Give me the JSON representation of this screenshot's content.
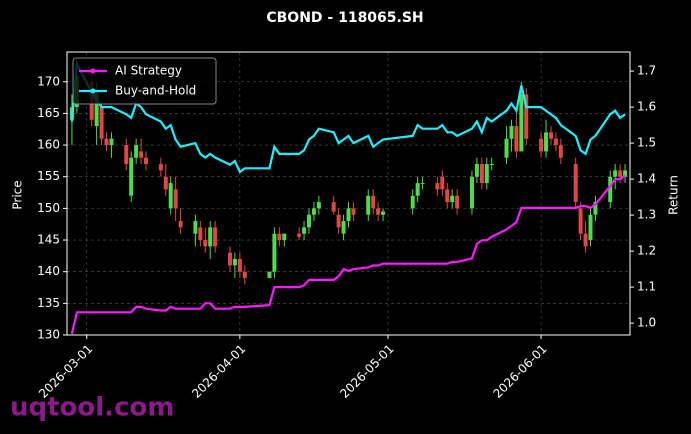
{
  "chart_data": {
    "type": "candlestick",
    "title": "CBOND - 118065.SH",
    "ylabel": "Price",
    "y2label": "Return",
    "watermark": "uqtool.com",
    "up_color": "#4ddc4d",
    "down_color": "#e04848",
    "grid": true,
    "legend": "upper left",
    "x": [
      "2026-02-26",
      "2026-02-27",
      "2026-03-02",
      "2026-03-03",
      "2026-03-04",
      "2026-03-05",
      "2026-03-06",
      "2026-03-09",
      "2026-03-10",
      "2026-03-11",
      "2026-03-12",
      "2026-03-13",
      "2026-03-16",
      "2026-03-17",
      "2026-03-18",
      "2026-03-19",
      "2026-03-20",
      "2026-03-23",
      "2026-03-24",
      "2026-03-25",
      "2026-03-26",
      "2026-03-27",
      "2026-03-30",
      "2026-03-31",
      "2026-04-01",
      "2026-04-02",
      "2026-04-07",
      "2026-04-08",
      "2026-04-09",
      "2026-04-10",
      "2026-04-13",
      "2026-04-14",
      "2026-04-15",
      "2026-04-16",
      "2026-04-17",
      "2026-04-20",
      "2026-04-21",
      "2026-04-22",
      "2026-04-23",
      "2026-04-24",
      "2026-04-27",
      "2026-04-28",
      "2026-04-29",
      "2026-04-30",
      "2026-05-06",
      "2026-05-07",
      "2026-05-08",
      "2026-05-11",
      "2026-05-12",
      "2026-05-13",
      "2026-05-14",
      "2026-05-15",
      "2026-05-18",
      "2026-05-19",
      "2026-05-20",
      "2026-05-21",
      "2026-05-22",
      "2026-05-25",
      "2026-05-26",
      "2026-05-27",
      "2026-05-28",
      "2026-05-29",
      "2026-06-01",
      "2026-06-02",
      "2026-06-03",
      "2026-06-04",
      "2026-06-05",
      "2026-06-08",
      "2026-06-09",
      "2026-06-10",
      "2026-06-11",
      "2026-06-12",
      "2026-06-15",
      "2026-06-16",
      "2026-06-17",
      "2026-06-18"
    ],
    "open": [
      164,
      166,
      170,
      163,
      166,
      161,
      160,
      160,
      152,
      158,
      159,
      158,
      157,
      155,
      150,
      153,
      148,
      146,
      147,
      145,
      144,
      147,
      143,
      141,
      142,
      140,
      139,
      140,
      146,
      145,
      146,
      146,
      147,
      149,
      150,
      151,
      149,
      146,
      148,
      150,
      149,
      152,
      150,
      149,
      150,
      152,
      154,
      154,
      155,
      153,
      151,
      152,
      150,
      155,
      157,
      154,
      157,
      158,
      161,
      163,
      159,
      168,
      161,
      159,
      162,
      161,
      160,
      157,
      150,
      146,
      145,
      149,
      151,
      155,
      156,
      155
    ],
    "high": [
      168,
      172,
      171,
      170,
      167,
      162,
      162,
      161,
      159,
      161,
      161,
      159,
      158,
      157,
      155,
      155,
      150,
      149,
      148,
      147,
      148,
      148,
      144,
      143,
      143,
      141,
      140,
      147,
      147,
      146,
      147,
      148,
      150,
      151,
      152,
      152,
      150,
      149,
      151,
      151,
      153,
      153,
      151,
      150,
      153,
      155,
      155,
      155,
      156,
      154,
      153,
      153,
      156,
      158,
      158,
      158,
      158,
      163,
      164,
      166,
      170,
      169,
      162,
      164,
      163,
      162,
      161,
      158,
      151,
      148,
      150,
      152,
      156,
      157,
      157,
      157
    ],
    "low": [
      160,
      165,
      163,
      160,
      160,
      159,
      158,
      156,
      151,
      157,
      157,
      156,
      155,
      152,
      149,
      148,
      146,
      144,
      144,
      143,
      142,
      143,
      140,
      139,
      139,
      138,
      139,
      139,
      144,
      144,
      145,
      145,
      146,
      148,
      149,
      149,
      146,
      145,
      147,
      148,
      148,
      149,
      148,
      148,
      149,
      151,
      153,
      152,
      152,
      150,
      150,
      149,
      149,
      154,
      153,
      153,
      156,
      157,
      159,
      158,
      159,
      160,
      158,
      158,
      160,
      159,
      157,
      150,
      145,
      143,
      144,
      148,
      150,
      153,
      154,
      154
    ],
    "close": [
      166,
      171,
      164,
      168,
      161,
      160,
      161,
      157,
      158,
      160,
      158,
      157,
      156,
      153,
      154,
      150,
      147,
      148,
      145,
      144,
      147,
      144,
      141,
      142,
      140,
      139,
      140,
      146,
      145,
      146,
      145.5,
      147,
      149,
      150,
      151,
      149.5,
      147,
      148,
      150,
      149,
      152,
      150,
      149,
      149.5,
      152,
      154,
      154,
      153,
      153,
      151,
      152,
      150,
      155,
      157,
      154,
      157,
      157,
      161,
      163,
      159,
      168,
      161,
      159,
      162,
      161,
      160,
      158,
      151,
      146,
      144,
      149,
      151,
      155,
      156,
      155,
      156
    ],
    "series": [
      {
        "name": "AI Strategy",
        "color": "#ff1aff",
        "axis": "y2",
        "values": [
          0.97,
          1.03,
          1.03,
          1.03,
          1.03,
          1.03,
          1.03,
          1.03,
          1.03,
          1.045,
          1.045,
          1.04,
          1.035,
          1.035,
          1.045,
          1.04,
          1.04,
          1.04,
          1.04,
          1.055,
          1.055,
          1.04,
          1.04,
          1.045,
          1.045,
          1.045,
          1.05,
          1.1,
          1.1,
          1.1,
          1.1,
          1.105,
          1.12,
          1.12,
          1.12,
          1.12,
          1.13,
          1.15,
          1.145,
          1.15,
          1.155,
          1.16,
          1.16,
          1.165,
          1.165,
          1.165,
          1.165,
          1.165,
          1.165,
          1.165,
          1.17,
          1.17,
          1.18,
          1.22,
          1.23,
          1.23,
          1.24,
          1.26,
          1.27,
          1.28,
          1.32,
          1.32,
          1.32,
          1.32,
          1.32,
          1.32,
          1.32,
          1.32,
          1.325,
          1.325,
          1.32,
          1.33,
          1.38,
          1.4,
          1.4,
          1.41
        ]
      },
      {
        "name": "Buy-and-Hold",
        "color": "#1ef0ff",
        "axis": "y2",
        "values": [
          1.56,
          1.72,
          1.64,
          1.62,
          1.6,
          1.6,
          1.6,
          1.58,
          1.57,
          1.61,
          1.6,
          1.58,
          1.56,
          1.54,
          1.55,
          1.51,
          1.49,
          1.5,
          1.47,
          1.46,
          1.47,
          1.46,
          1.44,
          1.45,
          1.42,
          1.43,
          1.43,
          1.49,
          1.47,
          1.47,
          1.47,
          1.48,
          1.51,
          1.52,
          1.54,
          1.53,
          1.5,
          1.51,
          1.52,
          1.5,
          1.52,
          1.49,
          1.5,
          1.51,
          1.52,
          1.55,
          1.54,
          1.54,
          1.55,
          1.53,
          1.53,
          1.52,
          1.54,
          1.56,
          1.53,
          1.57,
          1.56,
          1.59,
          1.61,
          1.59,
          1.66,
          1.6,
          1.6,
          1.59,
          1.58,
          1.57,
          1.55,
          1.52,
          1.48,
          1.47,
          1.51,
          1.52,
          1.58,
          1.59,
          1.57,
          1.58
        ]
      }
    ],
    "xlim": [
      "2026-02-25",
      "2026-06-19"
    ],
    "xticks": [
      "2026-03-01",
      "2026-04-01",
      "2026-05-01",
      "2026-06-01"
    ],
    "ylim": [
      130,
      174.7
    ],
    "yticks": [
      130,
      135,
      140,
      145,
      150,
      155,
      160,
      165,
      170
    ],
    "y2lim": [
      0.967,
      1.753
    ],
    "y2ticks": [
      {
        "value": 1,
        "label": "1.0"
      },
      1.1,
      1.2,
      1.3,
      1.4,
      1.5,
      1.6,
      1.7
    ]
  }
}
